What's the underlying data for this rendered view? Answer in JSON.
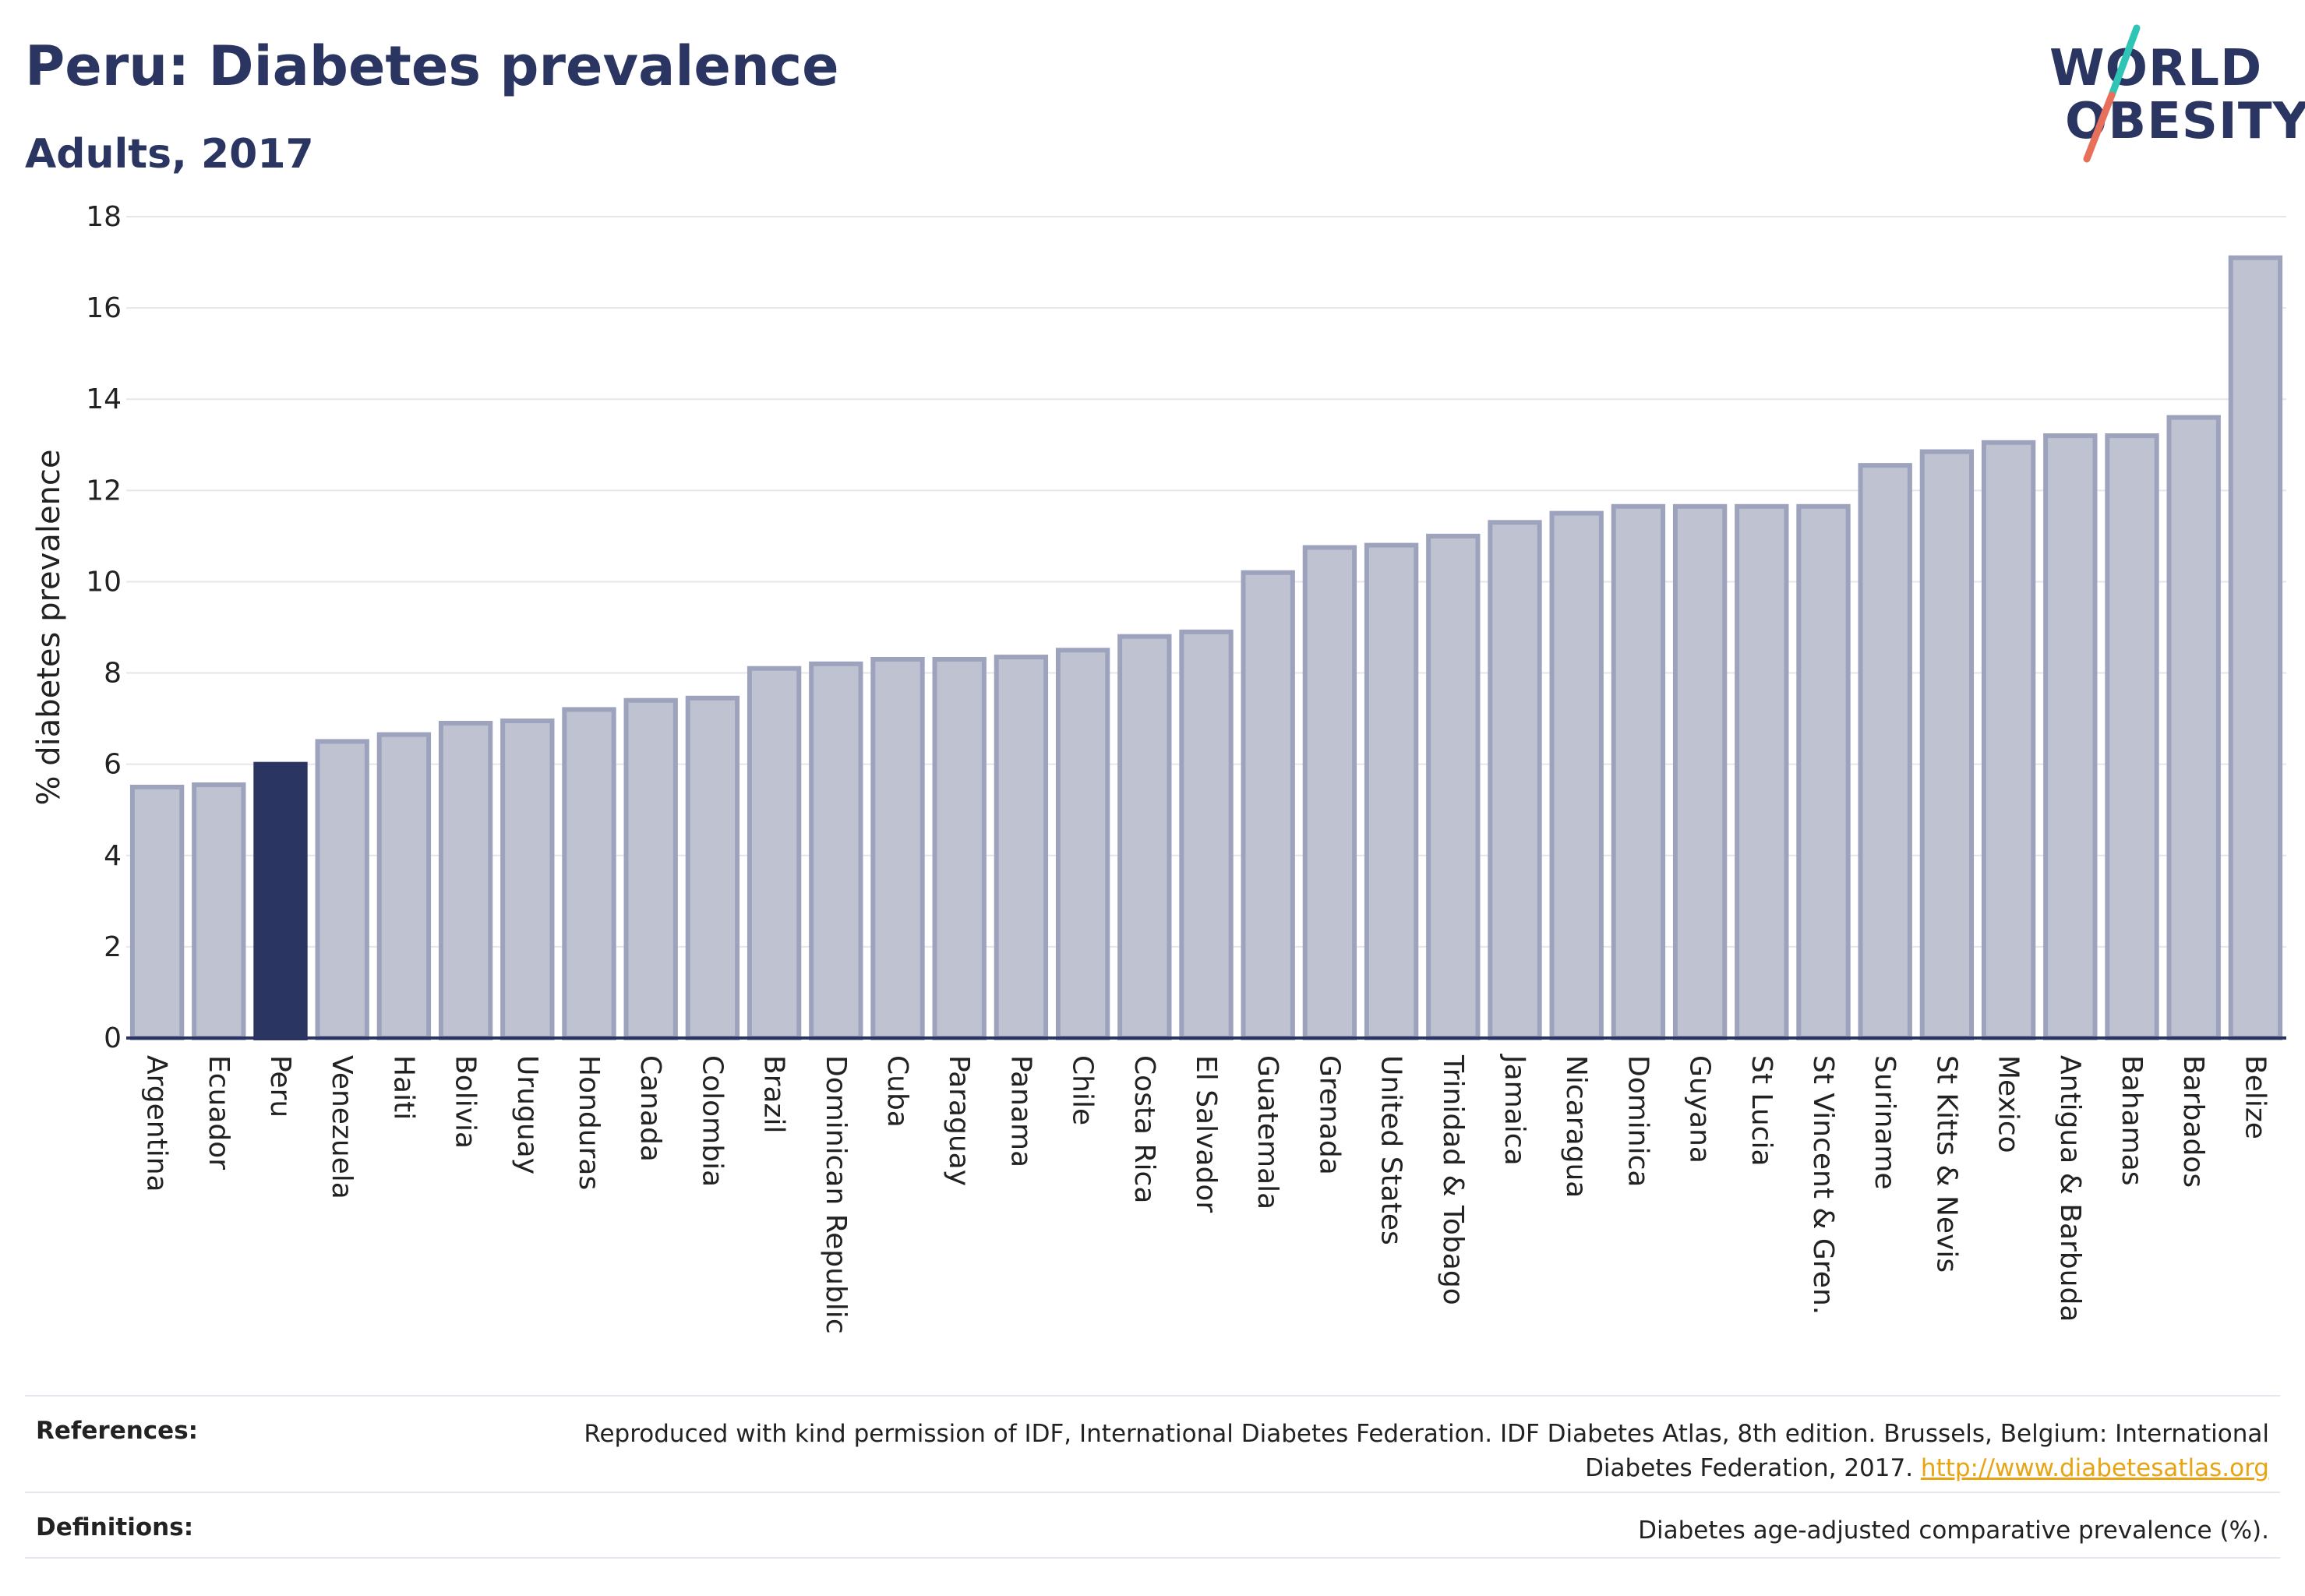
{
  "header": {
    "title": "Peru: Diabetes prevalence",
    "subtitle": "Adults, 2017"
  },
  "logo": {
    "line1": "WORLD",
    "line2": "OBESITY",
    "slash_colors": [
      "#2ec4b6",
      "#e8705a"
    ]
  },
  "colors": {
    "bar": "#bfc2d1",
    "bar_stroke": "#9ea3bd",
    "highlight": "#2b3561",
    "gridline": "#e6e6ea",
    "axis": "#2b3561"
  },
  "chart_data": {
    "type": "bar",
    "ylabel": "% diabetes prevalence",
    "ylim": [
      0,
      18
    ],
    "yticks": [
      0,
      2,
      4,
      6,
      8,
      10,
      12,
      14,
      16,
      18
    ],
    "highlight": "Peru",
    "grid": true,
    "categories": [
      "Argentina",
      "Ecuador",
      "Peru",
      "Venezuela",
      "Haiti",
      "Bolivia",
      "Uruguay",
      "Honduras",
      "Canada",
      "Colombia",
      "Brazil",
      "Dominican Republic",
      "Cuba",
      "Paraguay",
      "Panama",
      "Chile",
      "Costa Rica",
      "El Salvador",
      "Guatemala",
      "Grenada",
      "United States",
      "Trinidad & Tobago",
      "Jamaica",
      "Nicaragua",
      "Dominica",
      "Guyana",
      "St Lucia",
      "St Vincent & Gren.",
      "Suriname",
      "St Kitts & Nevis",
      "Mexico",
      "Antigua & Barbuda",
      "Bahamas",
      "Barbados",
      "Belize"
    ],
    "values": [
      5.5,
      5.55,
      6.0,
      6.5,
      6.65,
      6.9,
      6.95,
      7.2,
      7.4,
      7.45,
      8.1,
      8.2,
      8.3,
      8.3,
      8.35,
      8.5,
      8.8,
      8.9,
      10.2,
      10.75,
      10.8,
      11.0,
      11.3,
      11.5,
      11.65,
      11.65,
      11.65,
      11.65,
      12.55,
      12.85,
      13.05,
      13.2,
      13.2,
      13.6,
      17.1
    ]
  },
  "footer": {
    "references_label": "References:",
    "references_text": "Reproduced with kind permission of IDF, International Diabetes Federation. IDF Diabetes Atlas, 8th edition. Brussels, Belgium: International Diabetes Federation, 2017.",
    "references_link": "http://www.diabetesatlas.org",
    "definitions_label": "Definitions:",
    "definitions_text": "Diabetes age-adjusted comparative prevalence (%)."
  }
}
